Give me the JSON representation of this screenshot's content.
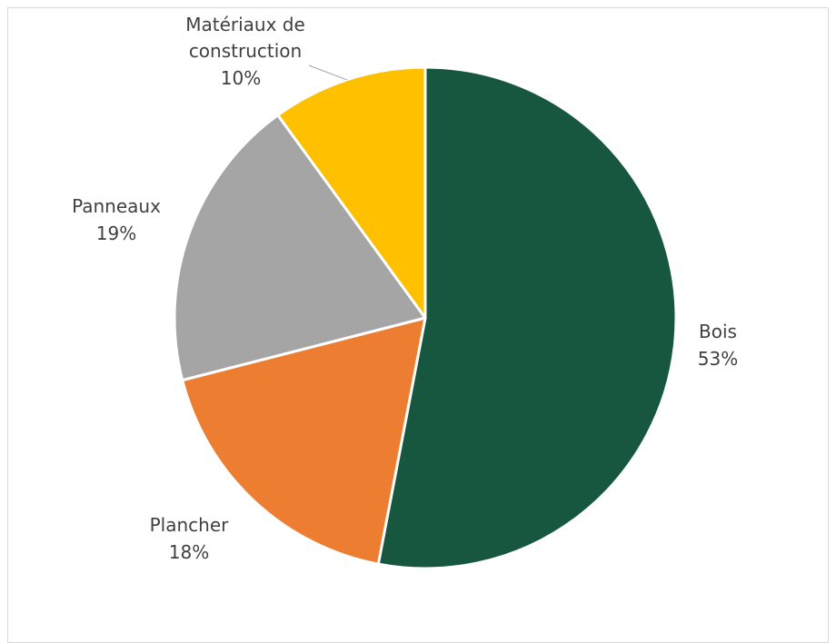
{
  "chart_data": {
    "type": "pie",
    "title": "",
    "legend": "none",
    "start_angle_deg": 0,
    "direction": "clockwise",
    "slices": [
      {
        "name": "Bois",
        "value": 53,
        "label": "53%",
        "color": "#17563F"
      },
      {
        "name": "Plancher",
        "value": 18,
        "label": "18%",
        "color": "#ED7D31"
      },
      {
        "name": "Panneaux",
        "value": 19,
        "label": "19%",
        "color": "#A5A5A5"
      },
      {
        "name": "Matériaux de construction",
        "name_lines": [
          "Matériaux de",
          "construction"
        ],
        "value": 10,
        "label": "10%",
        "color": "#FFC000"
      }
    ]
  }
}
